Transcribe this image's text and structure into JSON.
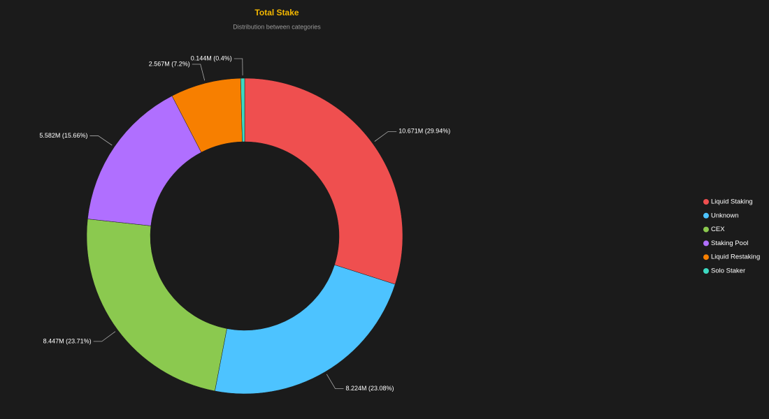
{
  "chart_data": {
    "type": "donut",
    "title": "Total Stake",
    "subtitle": "Distribution between categories",
    "categories": [
      "Liquid Staking",
      "Unknown",
      "CEX",
      "Staking Pool",
      "Liquid Restaking",
      "Solo Staker"
    ],
    "values": [
      10.671,
      8.224,
      8.447,
      5.582,
      2.567,
      0.144
    ],
    "value_labels": [
      "10.671M (29.94%)",
      "8.224M (23.08%)",
      "8.447M (23.71%)",
      "5.582M (15.66%)",
      "2.567M (7.2%)",
      "0.144M (0.4%)"
    ],
    "colors": [
      "#ef4f4f",
      "#4dc3ff",
      "#8bc94f",
      "#b06fff",
      "#f77f00",
      "#3dd9c1"
    ],
    "legend": "right"
  }
}
